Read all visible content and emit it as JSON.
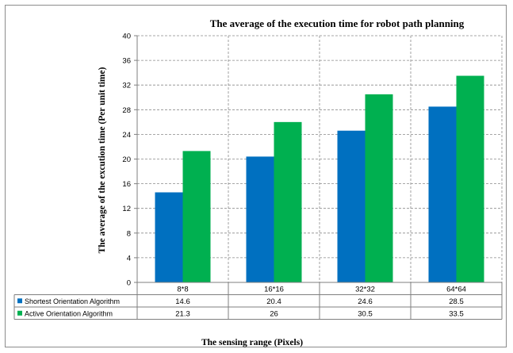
{
  "chart_data": {
    "type": "bar",
    "title": "The average of the execution time for robot path planning",
    "xlabel": "The sensing range (Pixels)",
    "ylabel": "The average of the excution time (Per unit time)",
    "categories": [
      "8*8",
      "16*16",
      "32*32",
      "64*64"
    ],
    "ylim": [
      0,
      40
    ],
    "yticks": [
      0,
      4,
      8,
      12,
      16,
      20,
      24,
      28,
      32,
      36,
      40
    ],
    "grid": true,
    "legend_placement": "data-table",
    "series": [
      {
        "name": "Shortest Orientation Algorithm",
        "values": [
          14.6,
          20.4,
          24.6,
          28.5
        ],
        "labels": [
          "14.6",
          "20.4",
          "24.6",
          "28.5"
        ],
        "color": "#0070C0"
      },
      {
        "name": "Active Orientation Algorithm",
        "values": [
          21.3,
          26,
          30.5,
          33.5
        ],
        "labels": [
          "21.3",
          "26",
          "30.5",
          "33.5"
        ],
        "color": "#00B050"
      }
    ]
  }
}
